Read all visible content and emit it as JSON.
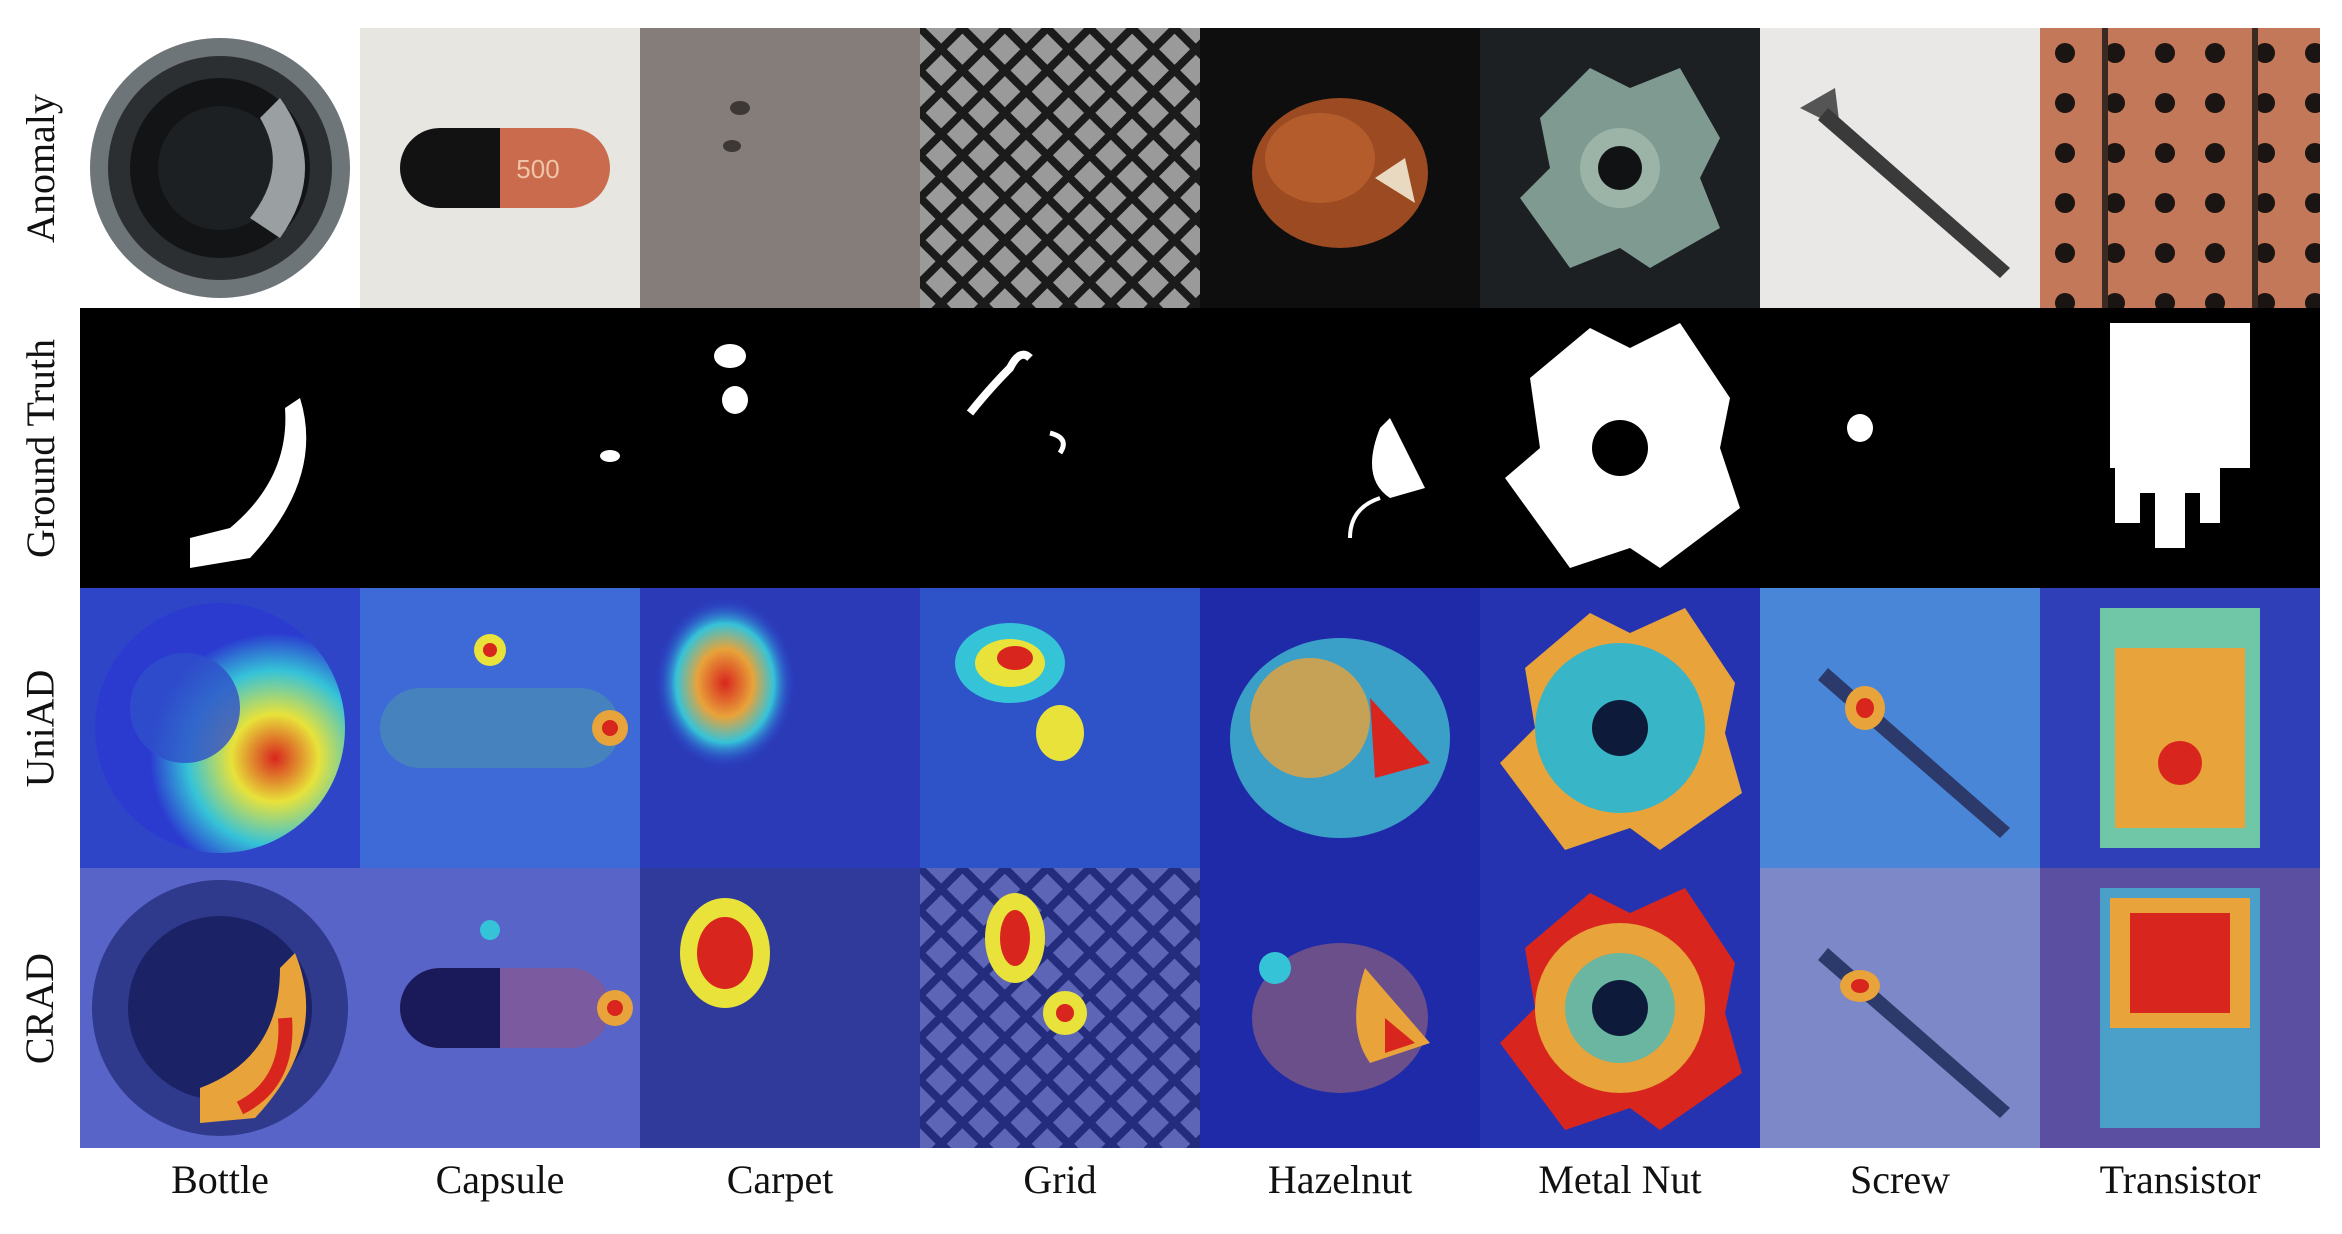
{
  "figure": {
    "row_labels": [
      "Anomaly",
      "Ground Truth",
      "UniAD",
      "CRAD"
    ],
    "column_labels": [
      "Bottle",
      "Capsule",
      "Carpet",
      "Grid",
      "Hazelnut",
      "Metal Nut",
      "Screw",
      "Transistor"
    ],
    "capsule_print": "500"
  },
  "colors": {
    "heat_low": "#2b3bd0",
    "heat_mid": "#35c3d8",
    "heat_warm": "#e8e23a",
    "heat_hot": "#d8261e",
    "mask": "#ffffff",
    "mask_bg": "#000000"
  }
}
